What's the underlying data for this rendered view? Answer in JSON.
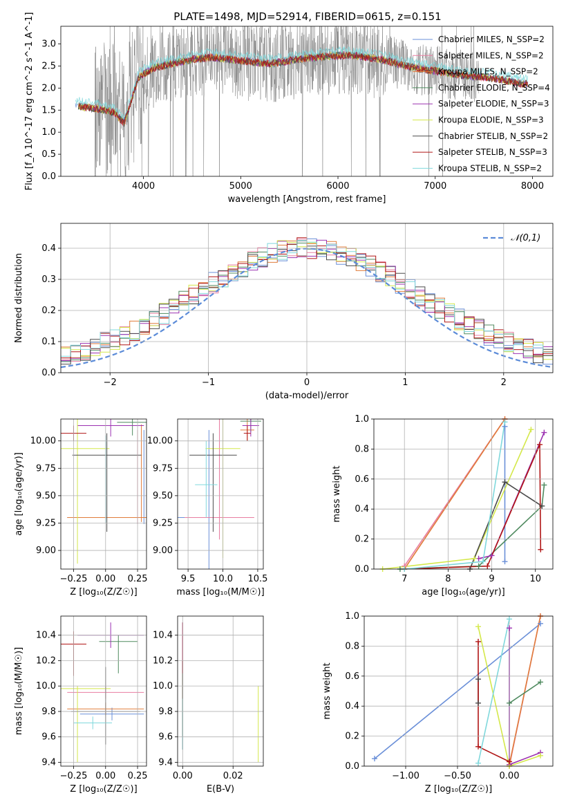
{
  "figure_title": "PLATE=1498, MJD=52914, FIBERID=0615, z=0.151",
  "chart_data": [
    {
      "type": "line",
      "panel": "spectrum",
      "title": "PLATE=1498, MJD=52914, FIBERID=0615, z=0.151",
      "xlabel": "wavelength [Angstrom, rest frame]",
      "ylabel": "Flux [f_λ 10^-17 erg cm^-2 s^-1 A^-1]",
      "xlim": [
        3150,
        8210
      ],
      "ylim": [
        0,
        3.4
      ],
      "xticks": [
        4000,
        5000,
        6000,
        7000,
        8000
      ],
      "yticks": [
        0.0,
        0.5,
        1.0,
        1.5,
        2.0,
        2.5,
        3.0
      ],
      "grid": false,
      "legend_position": "top-right",
      "legend": [
        {
          "label": "Chabrier MILES, N_SSP=2",
          "color": "#6a8fd8"
        },
        {
          "label": "Salpeter MILES, N_SSP=2",
          "color": "#e87da0"
        },
        {
          "label": "Kroupa MILES, N_SSP=2",
          "color": "#e07b39"
        },
        {
          "label": "Chabrier ELODIE, N_SSP=4",
          "color": "#4f8a5f"
        },
        {
          "label": "Salpeter ELODIE, N_SSP=3",
          "color": "#9b30b0"
        },
        {
          "label": "Kroupa ELODIE, N_SSP=3",
          "color": "#d4e84a"
        },
        {
          "label": "Chabrier STELIB, N_SSP=2",
          "color": "#4a4a4a"
        },
        {
          "label": "Salpeter STELIB, N_SSP=3",
          "color": "#b01515"
        },
        {
          "label": "Kroupa STELIB, N_SSP=2",
          "color": "#7fd8dc"
        }
      ],
      "data_color": "#808080",
      "continuum": {
        "x": [
          3300,
          3450,
          3600,
          3700,
          3800,
          3950,
          4100,
          4300,
          4500,
          4700,
          4900,
          5100,
          5300,
          5500,
          5700,
          5900,
          6100,
          6300,
          6500,
          6700,
          6900,
          7100,
          7300,
          7500,
          7700,
          7900
        ],
        "y": [
          1.6,
          1.55,
          1.5,
          1.45,
          1.2,
          2.25,
          2.45,
          2.55,
          2.65,
          2.7,
          2.65,
          2.6,
          2.55,
          2.62,
          2.68,
          2.72,
          2.75,
          2.7,
          2.62,
          2.5,
          2.42,
          2.35,
          2.28,
          2.25,
          2.18,
          2.1
        ]
      }
    },
    {
      "type": "histogram",
      "panel": "residuals",
      "xlabel": "(data-model)/error",
      "ylabel": "Normed distribution",
      "xlim": [
        -2.5,
        2.5
      ],
      "ylim": [
        0,
        0.48
      ],
      "xticks": [
        -2,
        -1,
        0,
        1,
        2
      ],
      "yticks": [
        0.0,
        0.1,
        0.2,
        0.3,
        0.4
      ],
      "grid": true,
      "legend_position": "top-right",
      "reference_curve": {
        "label": "𝒩(0,1)",
        "color": "#5b8bd8",
        "style": "dashed",
        "mean": 0,
        "sigma": 1
      }
    },
    {
      "type": "scatter",
      "panel": "age-vs-Z",
      "xlabel": "Z [log₁₀(Z/Z☉)]",
      "ylabel": "age  [log₁₀(age/yr)]",
      "xlim": [
        -0.35,
        0.32
      ],
      "ylim": [
        8.83,
        10.2
      ],
      "xticks": [
        -0.25,
        0.0,
        0.25
      ],
      "yticks": [
        9.0,
        9.25,
        9.5,
        9.75,
        10.0
      ],
      "grid": true
    },
    {
      "type": "scatter",
      "panel": "age-vs-mass",
      "xlabel": "mass [log₁₀(M/M☉)]",
      "ylabel": "",
      "xlim": [
        9.35,
        10.58
      ],
      "ylim": [
        8.83,
        10.2
      ],
      "xticks": [
        9.5,
        10.0,
        10.5
      ],
      "yticks": [
        9.0,
        9.25,
        9.5,
        9.75,
        10.0
      ],
      "grid": true
    },
    {
      "type": "line",
      "panel": "massweight-vs-age",
      "xlabel": "age  [log₁₀(age/yr)]",
      "ylabel": "mass weight",
      "xlim": [
        6.3,
        10.4
      ],
      "ylim": [
        0,
        1.0
      ],
      "xticks": [
        7,
        8,
        9,
        10
      ],
      "yticks": [
        0.0,
        0.2,
        0.4,
        0.6,
        0.8,
        1.0
      ],
      "grid": true,
      "series": [
        {
          "name": "Chabrier MILES",
          "color": "#6a8fd8",
          "x": [
            9.3,
            9.3
          ],
          "y": [
            0.05,
            0.95
          ]
        },
        {
          "name": "Salpeter MILES",
          "color": "#e87da0",
          "x": [
            7.0,
            9.3
          ],
          "y": [
            0.02,
            1.0
          ]
        },
        {
          "name": "Kroupa MILES",
          "color": "#e07b39",
          "x": [
            7.0,
            9.3
          ],
          "y": [
            0.0,
            1.0
          ]
        },
        {
          "name": "Chabrier ELODIE",
          "color": "#4f8a5f",
          "x": [
            6.9,
            8.7,
            10.15,
            10.2
          ],
          "y": [
            0.0,
            0.02,
            0.42,
            0.56
          ]
        },
        {
          "name": "Salpeter ELODIE",
          "color": "#9b30b0",
          "x": [
            8.7,
            9.0,
            10.2
          ],
          "y": [
            0.07,
            0.09,
            0.91
          ]
        },
        {
          "name": "Kroupa ELODIE",
          "color": "#d4e84a",
          "x": [
            6.5,
            8.6,
            9.9
          ],
          "y": [
            0.0,
            0.07,
            0.93
          ]
        },
        {
          "name": "Chabrier STELIB",
          "color": "#4a4a4a",
          "x": [
            8.5,
            9.3,
            10.15
          ],
          "y": [
            0.0,
            0.58,
            0.42
          ]
        },
        {
          "name": "Salpeter STELIB",
          "color": "#b01515",
          "x": [
            7.0,
            8.9,
            10.1,
            10.12
          ],
          "y": [
            0.0,
            0.02,
            0.83,
            0.13
          ]
        },
        {
          "name": "Kroupa STELIB",
          "color": "#7fd8dc",
          "x": [
            7.0,
            8.8,
            9.3
          ],
          "y": [
            0.0,
            0.05,
            0.98
          ]
        }
      ]
    },
    {
      "type": "scatter",
      "panel": "mass-vs-Z",
      "xlabel": "Z [log₁₀(Z/Z☉)]",
      "ylabel": "mass [log₁₀(M/M☉)]",
      "xlim": [
        -0.35,
        0.32
      ],
      "ylim": [
        9.37,
        10.55
      ],
      "xticks": [
        -0.25,
        0.0,
        0.25
      ],
      "yticks": [
        9.4,
        9.6,
        9.8,
        10.0,
        10.2,
        10.4
      ],
      "grid": true
    },
    {
      "type": "scatter",
      "panel": "mass-vs-EBV",
      "xlabel": "E(B-V)",
      "ylabel": "",
      "xlim": [
        -0.002,
        0.032
      ],
      "ylim": [
        9.37,
        10.55
      ],
      "xticks": [
        0.0,
        0.02
      ],
      "yticks": [
        9.4,
        9.6,
        9.8,
        10.0,
        10.2,
        10.4
      ],
      "grid": true
    },
    {
      "type": "line",
      "panel": "massweight-vs-Z",
      "xlabel": "Z [log₁₀(Z/Z☉)]",
      "ylabel": "mass weight",
      "xlim": [
        -1.4,
        0.42
      ],
      "ylim": [
        0,
        1.0
      ],
      "xticks": [
        -1.0,
        -0.5,
        0.0
      ],
      "yticks": [
        0.0,
        0.2,
        0.4,
        0.6,
        0.8,
        1.0
      ],
      "grid": true,
      "series": [
        {
          "name": "Chabrier MILES",
          "color": "#6a8fd8",
          "x": [
            -1.3,
            0.3
          ],
          "y": [
            0.05,
            0.95
          ]
        },
        {
          "name": "Salpeter MILES",
          "color": "#e87da0",
          "x": [
            0.0,
            0.3
          ],
          "y": [
            0.0,
            1.0
          ]
        },
        {
          "name": "Kroupa MILES",
          "color": "#e07b39",
          "x": [
            0.0,
            0.3
          ],
          "y": [
            0.01,
            1.0
          ]
        },
        {
          "name": "Chabrier ELODIE",
          "color": "#4f8a5f",
          "x": [
            0.0,
            0.3
          ],
          "y": [
            0.42,
            0.56
          ]
        },
        {
          "name": "Salpeter ELODIE",
          "color": "#9b30b0",
          "x": [
            0.0,
            0.0,
            0.3
          ],
          "y": [
            0.92,
            0.01,
            0.09
          ]
        },
        {
          "name": "Kroupa ELODIE",
          "color": "#d4e84a",
          "x": [
            -0.3,
            0.0,
            0.3
          ],
          "y": [
            0.93,
            0.0,
            0.07
          ]
        },
        {
          "name": "Chabrier STELIB",
          "color": "#4a4a4a",
          "x": [
            -0.3,
            -0.3
          ],
          "y": [
            0.42,
            0.58
          ]
        },
        {
          "name": "Salpeter STELIB",
          "color": "#b01515",
          "x": [
            -0.3,
            -0.3,
            0.0
          ],
          "y": [
            0.83,
            0.13,
            0.03
          ]
        },
        {
          "name": "Kroupa STELIB",
          "color": "#7fd8dc",
          "x": [
            -0.3,
            0.0
          ],
          "y": [
            0.02,
            0.98
          ]
        }
      ]
    }
  ]
}
